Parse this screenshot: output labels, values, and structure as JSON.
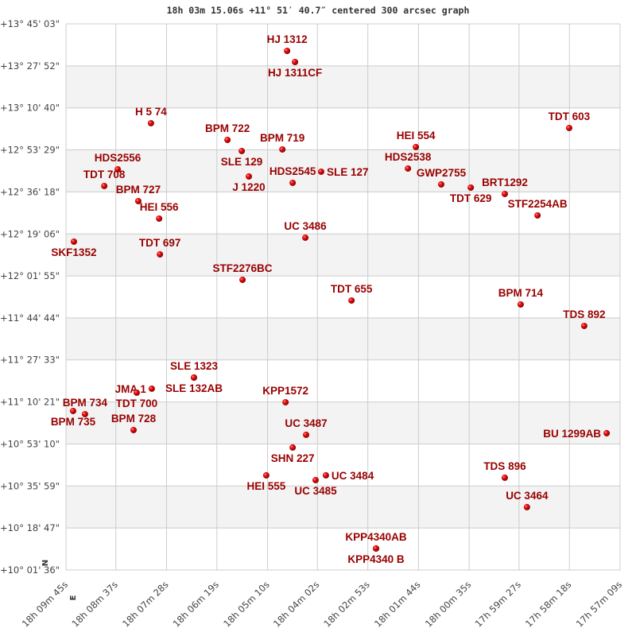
{
  "chart_data": {
    "type": "scatter",
    "title": "18h 03m 15.06s +11° 51′ 40.7″ centered 300 arcsec graph",
    "xlabel": "",
    "ylabel": "",
    "x_units": "right ascension (hours)",
    "y_units": "declination (degrees)",
    "xlim": [
      18.1625,
      17.9525
    ],
    "ylim": [
      10.0267,
      13.7508
    ],
    "x_reversed": true,
    "grid": true,
    "alternating_bands": true,
    "colors": {
      "label": "#990000",
      "marker": "#dd0000",
      "grid": "#cccccc",
      "band": "#f3f3f3"
    },
    "x_ticks": [
      {
        "value": 18.1625,
        "label": "18h 09m 45s"
      },
      {
        "value": 18.1436,
        "label": "18h 08m 37s"
      },
      {
        "value": 18.1244,
        "label": "18h 07m 28s"
      },
      {
        "value": 18.1053,
        "label": "18h 06m 19s"
      },
      {
        "value": 18.0861,
        "label": "18h 05m 10s"
      },
      {
        "value": 18.0672,
        "label": "18h 04m 02s"
      },
      {
        "value": 18.0481,
        "label": "18h 02m 53s"
      },
      {
        "value": 18.0289,
        "label": "18h 01m 44s"
      },
      {
        "value": 18.0097,
        "label": "18h 00m 35s"
      },
      {
        "value": 17.9908,
        "label": "17h 59m 27s"
      },
      {
        "value": 17.9717,
        "label": "17h 58m 18s"
      },
      {
        "value": 17.9525,
        "label": "17h 57m 09s"
      }
    ],
    "y_ticks": [
      {
        "value": 13.7508,
        "label": "+13° 45' 03\""
      },
      {
        "value": 13.4644,
        "label": "+13° 27' 52\""
      },
      {
        "value": 13.1778,
        "label": "+13° 10' 40\""
      },
      {
        "value": 12.8914,
        "label": "+12° 53' 29\""
      },
      {
        "value": 12.605,
        "label": "+12° 36' 18\""
      },
      {
        "value": 12.3183,
        "label": "+12° 19' 06\""
      },
      {
        "value": 12.0319,
        "label": "+12° 01' 55\""
      },
      {
        "value": 11.7456,
        "label": "+11° 44' 44\""
      },
      {
        "value": 11.4592,
        "label": "+11° 27' 33\""
      },
      {
        "value": 11.1725,
        "label": "+11° 10' 21\""
      },
      {
        "value": 10.8861,
        "label": "+10° 53' 10\""
      },
      {
        "value": 10.5997,
        "label": "+10° 35' 59\""
      },
      {
        "value": 10.3131,
        "label": "+10° 18' 47\""
      },
      {
        "value": 10.0267,
        "label": "+10° 01' 36\""
      }
    ],
    "directions": {
      "north": "N",
      "east": "E"
    },
    "points": [
      {
        "name": "HJ 1312",
        "ra": 18.0787,
        "dec": 13.5665
      },
      {
        "name": "HJ 1311CF",
        "ra": 18.0757,
        "dec": 13.4906
      },
      {
        "name": "H 5  74",
        "ra": 18.1303,
        "dec": 13.0733
      },
      {
        "name": "BPM 722",
        "ra": 18.1013,
        "dec": 12.9595
      },
      {
        "name": "SLE 129",
        "ra": 18.0959,
        "dec": 12.8836
      },
      {
        "name": "BPM 719",
        "ra": 18.0805,
        "dec": 12.8944
      },
      {
        "name": "J  1220",
        "ra": 18.0932,
        "dec": 12.7102
      },
      {
        "name": "HDS2545",
        "ra": 18.0766,
        "dec": 12.6668
      },
      {
        "name": "SLE 127",
        "ra": 18.0658,
        "dec": 12.7427
      },
      {
        "name": "HDS2556",
        "ra": 18.1429,
        "dec": 12.7589
      },
      {
        "name": "TDT 708",
        "ra": 18.148,
        "dec": 12.6451
      },
      {
        "name": "BPM 727",
        "ra": 18.1351,
        "dec": 12.5421
      },
      {
        "name": "HEI 556",
        "ra": 18.1272,
        "dec": 12.4229
      },
      {
        "name": "SKF1352",
        "ra": 18.1595,
        "dec": 12.2657
      },
      {
        "name": "TDT 697",
        "ra": 18.1269,
        "dec": 12.179
      },
      {
        "name": "UC 3486",
        "ra": 18.0718,
        "dec": 12.2928
      },
      {
        "name": "STF2276BC",
        "ra": 18.0956,
        "dec": 12.0055
      },
      {
        "name": "HEI 554",
        "ra": 18.0299,
        "dec": 12.9107
      },
      {
        "name": "HDS2538",
        "ra": 18.0329,
        "dec": 12.7644
      },
      {
        "name": "GWP2755",
        "ra": 18.0203,
        "dec": 12.656
      },
      {
        "name": "TDT 629",
        "ra": 18.0091,
        "dec": 12.6343
      },
      {
        "name": "BRT1292",
        "ra": 17.9962,
        "dec": 12.5909
      },
      {
        "name": "STF2254AB",
        "ra": 17.9838,
        "dec": 12.4446
      },
      {
        "name": "TDT 603",
        "ra": 17.9718,
        "dec": 13.0408
      },
      {
        "name": "TDT 655",
        "ra": 18.0543,
        "dec": 11.8646
      },
      {
        "name": "BPM 714",
        "ra": 17.9902,
        "dec": 11.8375
      },
      {
        "name": "TDS 892",
        "ra": 17.9661,
        "dec": 11.6912
      },
      {
        "name": "SLE 1323",
        "ra": 18.114,
        "dec": 11.3389
      },
      {
        "name": "SLE 132AB",
        "ra": 18.114,
        "dec": 11.3389
      },
      {
        "name": "JMA    1",
        "ra": 18.13,
        "dec": 11.263
      },
      {
        "name": "TDT 700",
        "ra": 18.1357,
        "dec": 11.2359
      },
      {
        "name": "BPM 735",
        "ra": 18.1598,
        "dec": 11.1112
      },
      {
        "name": "BPM 734",
        "ra": 18.1553,
        "dec": 11.0895
      },
      {
        "name": "BPM 728",
        "ra": 18.1369,
        "dec": 10.9811
      },
      {
        "name": "KPP1572",
        "ra": 18.0793,
        "dec": 11.1708
      },
      {
        "name": "UC 3487",
        "ra": 18.0715,
        "dec": 10.9486
      },
      {
        "name": "SHN 227",
        "ra": 18.0766,
        "dec": 10.8619
      },
      {
        "name": "HEI 555",
        "ra": 18.0866,
        "dec": 10.6722
      },
      {
        "name": "UC 3485",
        "ra": 18.0679,
        "dec": 10.6397
      },
      {
        "name": "UC 3484",
        "ra": 18.064,
        "dec": 10.6722
      },
      {
        "name": "KPP4340AB",
        "ra": 18.045,
        "dec": 10.1736
      },
      {
        "name": "KPP4340 B",
        "ra": 18.045,
        "dec": 10.1736
      },
      {
        "name": "BU 1299AB",
        "ra": 17.9576,
        "dec": 10.9595
      },
      {
        "name": "TDS 896",
        "ra": 17.9962,
        "dec": 10.6559
      },
      {
        "name": "UC 3464",
        "ra": 17.9878,
        "dec": 10.4554
      }
    ]
  }
}
